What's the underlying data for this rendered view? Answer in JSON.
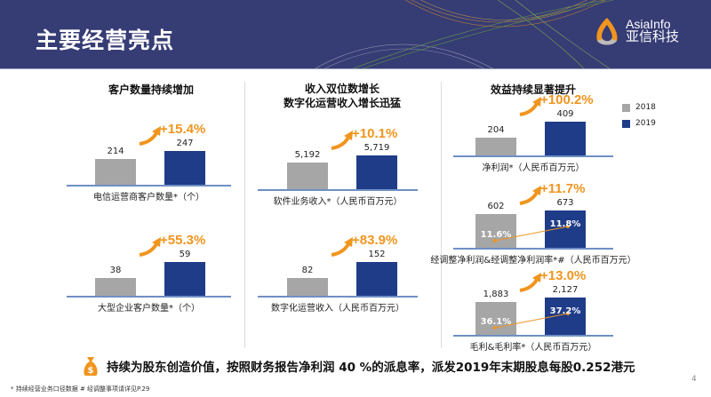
{
  "header": {
    "title": "主要经营亮点",
    "logo_en": "AsiaInfo",
    "logo_cn": "亚信科技"
  },
  "columns": [
    {
      "title": "客户数量持续增加"
    },
    {
      "title_line1": "收入双位数增长",
      "title_line2": "数字化运营收入增长迅猛"
    },
    {
      "title": "效益持续显著提升"
    }
  ],
  "legend": [
    {
      "label": "2018",
      "color": "#a6a6a6"
    },
    {
      "label": "2019",
      "color": "#1f3c88"
    }
  ],
  "charts": [
    {
      "label": "电信运营商客户数量*（个）",
      "growth": "+15.4%",
      "v2018": "214",
      "v2019": "247",
      "n2018": 214,
      "n2019": 247
    },
    {
      "label": "大型企业客户数量*（个）",
      "growth": "+55.3%",
      "v2018": "38",
      "v2019": "59",
      "n2018": 38,
      "n2019": 59
    },
    {
      "label": "软件业务收入*（人民币百万元）",
      "growth": "+10.1%",
      "v2018": "5,192",
      "v2019": "5,719",
      "n2018": 5192,
      "n2019": 5719
    },
    {
      "label": "数字化运营收入（人民币百万元）",
      "growth": "+83.9%",
      "v2018": "82",
      "v2019": "152",
      "n2018": 82,
      "n2019": 152
    },
    {
      "label": "净利润*（人民币百万元）",
      "growth": "+100.2%",
      "v2018": "204",
      "v2019": "409",
      "n2018": 204,
      "n2019": 409
    },
    {
      "label": "经调整净利润&经调整净利润率*#（人民币百万元）",
      "growth": "+11.7%",
      "v2018": "602",
      "v2019": "673",
      "n2018": 602,
      "n2019": 673,
      "r2018": "11.6%",
      "r2019": "11.8%"
    },
    {
      "label": "毛利&毛利率*（人民币百万元）",
      "growth": "+13.0%",
      "v2018": "1,883",
      "v2019": "2,127",
      "n2018": 1883,
      "n2019": 2127,
      "r2018": "36.1%",
      "r2019": "37.2%"
    }
  ],
  "bottom": {
    "icon": "money-bag-icon",
    "text": "持续为股东创造价值，按照财务报告净利润 40 %的派息率，派发2019年末期股息每股0.252港元"
  },
  "footnote": "*  持续经营业务口径数据   #  经调整事项请详见P.29",
  "page_number": "4",
  "colors": {
    "header": "#363c74",
    "bar2018": "#a6a6a6",
    "bar2019": "#1f3c88",
    "growth": "#f0951e"
  }
}
